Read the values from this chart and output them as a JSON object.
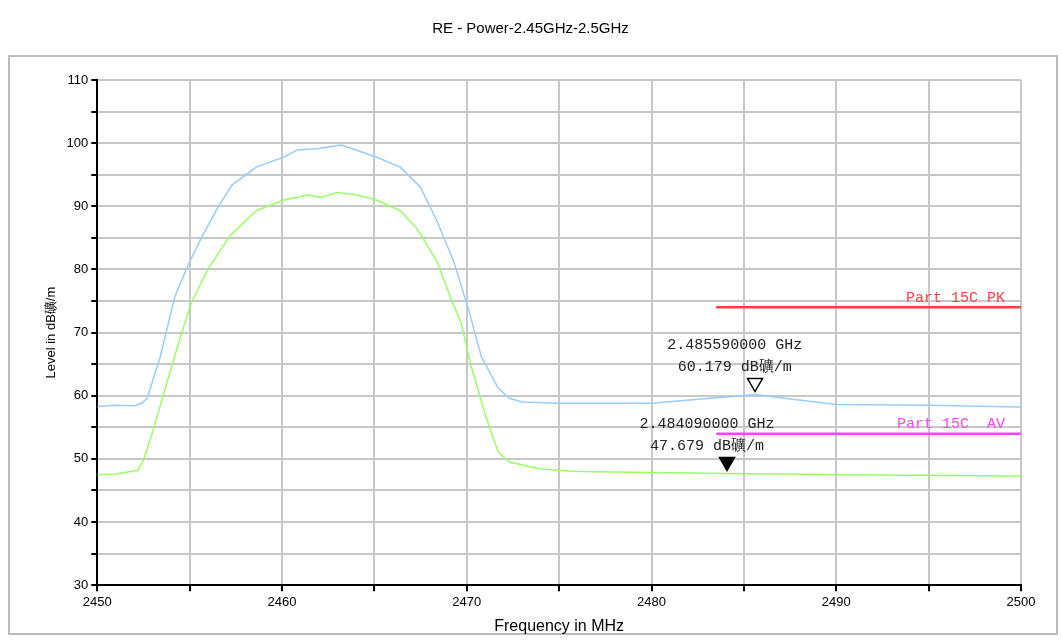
{
  "chart_data": {
    "type": "line",
    "title": "RE - Power-2.45GHz-2.5GHz",
    "xlabel": "Frequency in MHz",
    "ylabel": "Level in dB礦/m",
    "xlim": [
      2450,
      2500
    ],
    "ylim": [
      30,
      110
    ],
    "xticks": [
      2450,
      {
        "value": 2455,
        "label": null
      },
      2460,
      {
        "value": 2465,
        "label": null
      },
      2470,
      {
        "value": 2475,
        "label": null
      },
      2480,
      {
        "value": 2485,
        "label": null
      },
      2490,
      {
        "value": 2495,
        "label": null
      },
      2500
    ],
    "yticks": [
      30,
      {
        "value": 35,
        "label": null
      },
      40,
      {
        "value": 45,
        "label": null
      },
      50,
      {
        "value": 55,
        "label": null
      },
      60,
      {
        "value": 65,
        "label": null
      },
      70,
      {
        "value": 75,
        "label": null
      },
      80,
      {
        "value": 85,
        "label": null
      },
      90,
      {
        "value": 95,
        "label": null
      },
      100,
      {
        "value": 105,
        "label": null
      },
      110
    ],
    "grid": true,
    "series": [
      {
        "color": "#99ccff",
        "x": [
          2450,
          2451,
          2452,
          2452.4,
          2452.7,
          2453.4,
          2454.2,
          2454.9,
          2455.7,
          2456.6,
          2457.3,
          2458.6,
          2460.1,
          2460.8,
          2461.9,
          2463.2,
          2465.1,
          2466.4,
          2467.5,
          2468.4,
          2469.3,
          2470.1,
          2470.8,
          2471.7,
          2472.3,
          2473,
          2475,
          2480,
          2485.59,
          2490,
          2495,
          2500
        ],
        "values": [
          58.3,
          58.5,
          58.4,
          58.8,
          59.6,
          66.1,
          75.7,
          80.6,
          85.4,
          90.2,
          93.4,
          96.2,
          97.8,
          98.9,
          99.1,
          99.7,
          97.8,
          96.2,
          93,
          87.6,
          81.2,
          73.6,
          66.1,
          61.2,
          59.6,
          59,
          58.8,
          58.8,
          60.2,
          58.6,
          58.5,
          58.2
        ]
      },
      {
        "color": "#99ff66",
        "x": [
          2450,
          2451,
          2452.2,
          2452.5,
          2453,
          2453.8,
          2454.5,
          2455.1,
          2456,
          2457.2,
          2458.6,
          2460.1,
          2461.4,
          2462.1,
          2463,
          2464.1,
          2465.1,
          2466.4,
          2467.3,
          2468.4,
          2469.1,
          2469.7,
          2470.2,
          2471,
          2471.7,
          2472.3,
          2474,
          2476,
          2484.09,
          2490,
          2500
        ],
        "values": [
          47.5,
          47.6,
          48.2,
          49.8,
          54.3,
          62.4,
          69.3,
          74.8,
          80.1,
          85.4,
          89.3,
          91,
          91.8,
          91.4,
          92.2,
          91.8,
          91,
          89.3,
          86.5,
          81.2,
          75.7,
          71.5,
          65.1,
          57,
          51.1,
          49.5,
          48.4,
          48,
          47.7,
          47.5,
          47.3
        ]
      },
      {
        "name": "Part 15C PK",
        "color": "#ff4040",
        "x": [
          2483.5,
          2500
        ],
        "values": [
          74,
          74
        ]
      },
      {
        "name": "Part 15C  AV",
        "color": "#ff40ff",
        "x": [
          2483.5,
          2500
        ],
        "values": [
          54,
          54
        ]
      }
    ],
    "annotations": [
      {
        "text": "2.485590000 GHz\n60.179 dB礦/m",
        "x": 2485.59,
        "y": 60.179
      },
      {
        "text": "2.484090000 GHz\n47.679 dB礦/m",
        "x": 2484.09,
        "y": 47.679
      }
    ]
  }
}
